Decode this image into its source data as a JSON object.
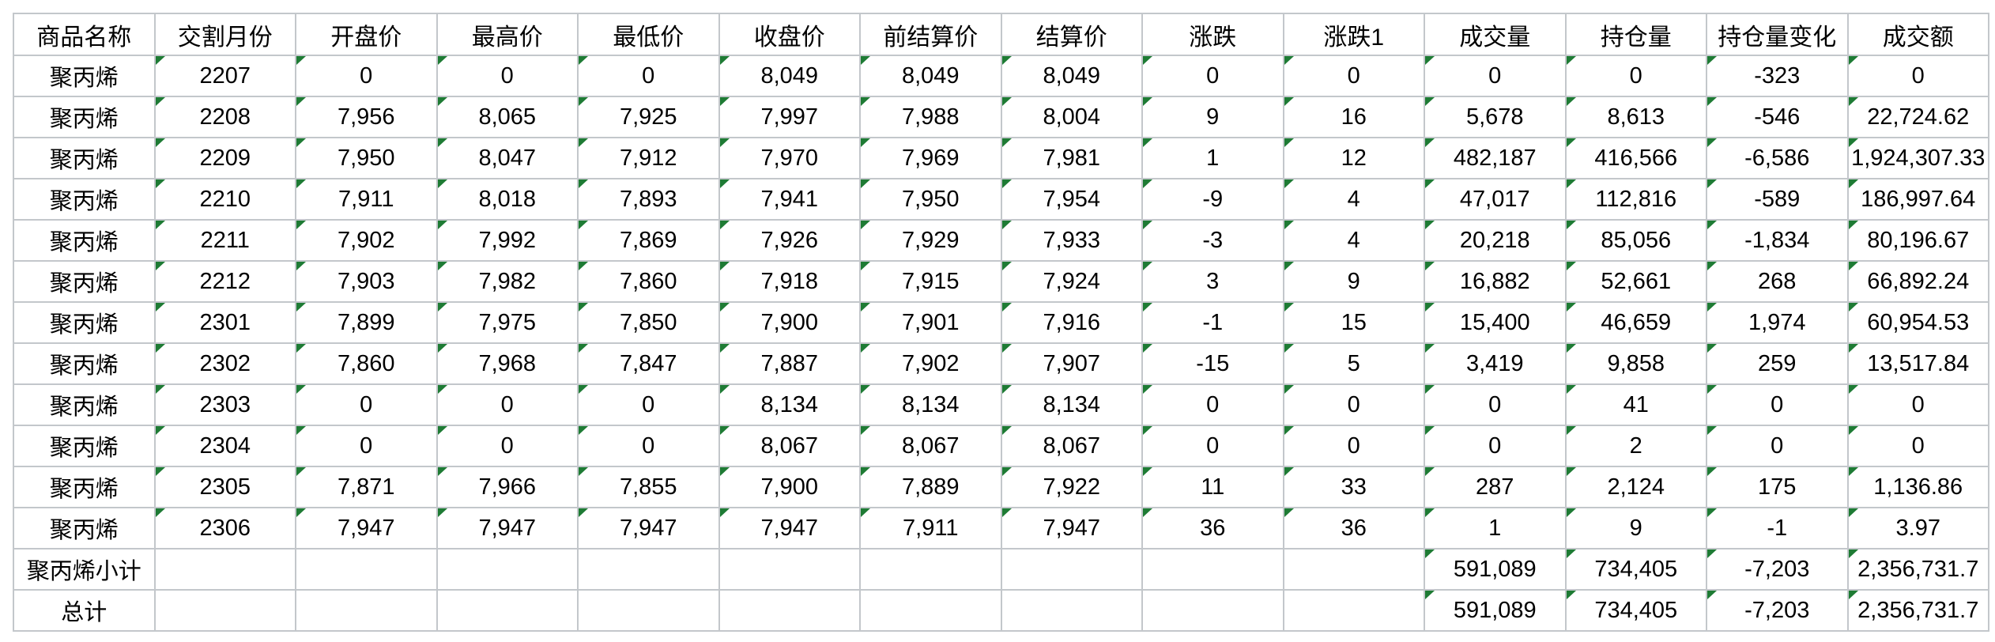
{
  "colors": {
    "background": "#ffffff",
    "grid_line": "#c3c7cb",
    "text": "#000000",
    "error_triangle_green": "#1e7b34"
  },
  "table": {
    "headers": [
      "商品名称",
      "交割月份",
      "开盘价",
      "最高价",
      "最低价",
      "收盘价",
      "前结算价",
      "结算价",
      "涨跌",
      "涨跌1",
      "成交量",
      "持仓量",
      "持仓量变化",
      "成交额"
    ],
    "rows": [
      [
        "聚丙烯",
        "2207",
        "0",
        "0",
        "0",
        "8,049",
        "8,049",
        "8,049",
        "0",
        "0",
        "0",
        "0",
        "-323",
        "0"
      ],
      [
        "聚丙烯",
        "2208",
        "7,956",
        "8,065",
        "7,925",
        "7,997",
        "7,988",
        "8,004",
        "9",
        "16",
        "5,678",
        "8,613",
        "-546",
        "22,724.62"
      ],
      [
        "聚丙烯",
        "2209",
        "7,950",
        "8,047",
        "7,912",
        "7,970",
        "7,969",
        "7,981",
        "1",
        "12",
        "482,187",
        "416,566",
        "-6,586",
        "1,924,307.33"
      ],
      [
        "聚丙烯",
        "2210",
        "7,911",
        "8,018",
        "7,893",
        "7,941",
        "7,950",
        "7,954",
        "-9",
        "4",
        "47,017",
        "112,816",
        "-589",
        "186,997.64"
      ],
      [
        "聚丙烯",
        "2211",
        "7,902",
        "7,992",
        "7,869",
        "7,926",
        "7,929",
        "7,933",
        "-3",
        "4",
        "20,218",
        "85,056",
        "-1,834",
        "80,196.67"
      ],
      [
        "聚丙烯",
        "2212",
        "7,903",
        "7,982",
        "7,860",
        "7,918",
        "7,915",
        "7,924",
        "3",
        "9",
        "16,882",
        "52,661",
        "268",
        "66,892.24"
      ],
      [
        "聚丙烯",
        "2301",
        "7,899",
        "7,975",
        "7,850",
        "7,900",
        "7,901",
        "7,916",
        "-1",
        "15",
        "15,400",
        "46,659",
        "1,974",
        "60,954.53"
      ],
      [
        "聚丙烯",
        "2302",
        "7,860",
        "7,968",
        "7,847",
        "7,887",
        "7,902",
        "7,907",
        "-15",
        "5",
        "3,419",
        "9,858",
        "259",
        "13,517.84"
      ],
      [
        "聚丙烯",
        "2303",
        "0",
        "0",
        "0",
        "8,134",
        "8,134",
        "8,134",
        "0",
        "0",
        "0",
        "41",
        "0",
        "0"
      ],
      [
        "聚丙烯",
        "2304",
        "0",
        "0",
        "0",
        "8,067",
        "8,067",
        "8,067",
        "0",
        "0",
        "0",
        "2",
        "0",
        "0"
      ],
      [
        "聚丙烯",
        "2305",
        "7,871",
        "7,966",
        "7,855",
        "7,900",
        "7,889",
        "7,922",
        "11",
        "33",
        "287",
        "2,124",
        "175",
        "1,136.86"
      ],
      [
        "聚丙烯",
        "2306",
        "7,947",
        "7,947",
        "7,947",
        "7,947",
        "7,911",
        "7,947",
        "36",
        "36",
        "1",
        "9",
        "-1",
        "3.97"
      ],
      [
        "聚丙烯小计",
        "",
        "",
        "",
        "",
        "",
        "",
        "",
        "",
        "",
        "591,089",
        "734,405",
        "-7,203",
        "2,356,731.7"
      ],
      [
        "总计",
        "",
        "",
        "",
        "",
        "",
        "",
        "",
        "",
        "",
        "591,089",
        "734,405",
        "-7,203",
        "2,356,731.7"
      ]
    ]
  }
}
